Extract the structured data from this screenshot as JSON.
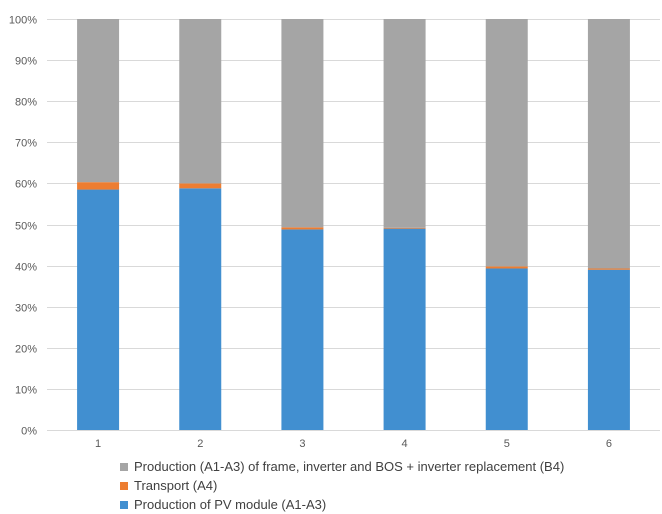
{
  "chart_data": {
    "type": "bar",
    "stacked": true,
    "percent": true,
    "categories": [
      "1",
      "2",
      "3",
      "4",
      "5",
      "6"
    ],
    "series": [
      {
        "name": "Production of PV module (A1-A3)",
        "color": "#418fd0",
        "values": [
          58.5,
          58.8,
          48.8,
          49.0,
          39.3,
          39.0
        ]
      },
      {
        "name": "Transport (A4)",
        "color": "#ed7d31",
        "values": [
          1.8,
          1.2,
          0.5,
          0.2,
          0.5,
          0.3
        ]
      },
      {
        "name": "Production (A1-A3) of frame, inverter and BOS + inverter replacement (B4)",
        "color": "#a5a5a5",
        "values": [
          39.7,
          40.0,
          50.7,
          50.8,
          60.2,
          60.7
        ]
      }
    ],
    "yticks": [
      "0%",
      "10%",
      "20%",
      "30%",
      "40%",
      "50%",
      "60%",
      "70%",
      "80%",
      "90%",
      "100%"
    ],
    "ylim": [
      0,
      100
    ],
    "grid": true,
    "legend_position": "bottom",
    "legend_order": [
      2,
      1,
      0
    ]
  }
}
